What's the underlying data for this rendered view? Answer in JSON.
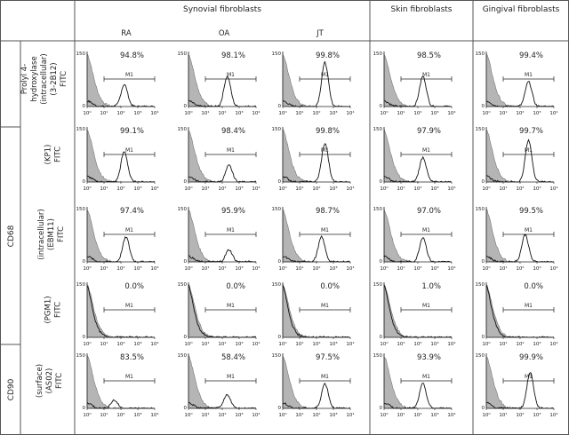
{
  "header": {
    "groups": [
      "Synovial fibroblasts",
      "Skin fibroblasts",
      "Gingival fibroblasts"
    ],
    "columns": [
      "RA",
      "OA",
      "JT",
      "",
      ""
    ]
  },
  "row_labels": [
    [
      "Prolyl 4-",
      "hydroxylase",
      "(intracellular)",
      "(3-2B12)",
      "FITC"
    ],
    [
      "(KP1)",
      "FITC"
    ],
    [
      "(intracellular)",
      "(EBM11)",
      "FITC"
    ],
    [
      "(PGM1)",
      "FITC"
    ],
    [
      "(surface)",
      "(AS02)",
      "FITC"
    ]
  ],
  "group_labels": [
    "CD68",
    "CD90"
  ],
  "panels": {
    "y_max_label": "150",
    "x_ticks": [
      "10⁰",
      "10¹",
      "10²",
      "10³",
      "10⁴"
    ],
    "gate_label": "M1"
  },
  "chart_data": {
    "type": "histogram-grid",
    "note_rows": [
      "Prolyl 4-hydroxylase (3-2B12)",
      "CD68 (KP1)",
      "CD68 (EBM11)",
      "CD68 (PGM1)",
      "CD90 (AS02)"
    ],
    "columns": [
      "RA",
      "OA",
      "JT",
      "Skin fibroblasts",
      "Gingival fibroblasts"
    ],
    "percent_positive": [
      [
        94.8,
        98.1,
        99.8,
        98.5,
        99.4
      ],
      [
        99.1,
        98.4,
        99.8,
        97.9,
        99.7
      ],
      [
        97.4,
        95.9,
        98.7,
        97.0,
        99.5
      ],
      [
        0.0,
        0.0,
        0.0,
        1.0,
        0.0
      ],
      [
        83.5,
        58.4,
        97.5,
        93.9,
        99.9
      ]
    ],
    "percent_labels": [
      [
        "94.8%",
        "98.1%",
        "99.8%",
        "98.5%",
        "99.4%"
      ],
      [
        "99.1%",
        "98.4%",
        "99.8%",
        "97.9%",
        "99.7%"
      ],
      [
        "97.4%",
        "95.9%",
        "98.7%",
        "97.0%",
        "99.5%"
      ],
      [
        "0.0%",
        "0.0%",
        "0.0%",
        "1.0%",
        "0.0%"
      ],
      [
        "83.5%",
        "58.4%",
        "97.5%",
        "93.9%",
        "99.9%"
      ]
    ],
    "peak_log_fluorescence": [
      [
        2.2,
        2.3,
        2.5,
        2.3,
        2.5
      ],
      [
        2.2,
        2.4,
        2.5,
        2.3,
        2.5
      ],
      [
        2.3,
        2.4,
        2.3,
        2.3,
        2.3
      ],
      [
        null,
        null,
        null,
        null,
        null
      ],
      [
        1.6,
        2.3,
        2.5,
        2.3,
        2.6
      ]
    ],
    "peak_height": [
      [
        0.4,
        0.55,
        0.8,
        0.55,
        0.45
      ],
      [
        0.55,
        0.3,
        0.7,
        0.45,
        0.75
      ],
      [
        0.45,
        0.22,
        0.45,
        0.45,
        0.5
      ],
      [
        0,
        0,
        0,
        0,
        0
      ],
      [
        0.15,
        0.25,
        0.45,
        0.45,
        0.65
      ]
    ],
    "x_range_log": [
      0,
      4
    ],
    "y_max": 150
  }
}
